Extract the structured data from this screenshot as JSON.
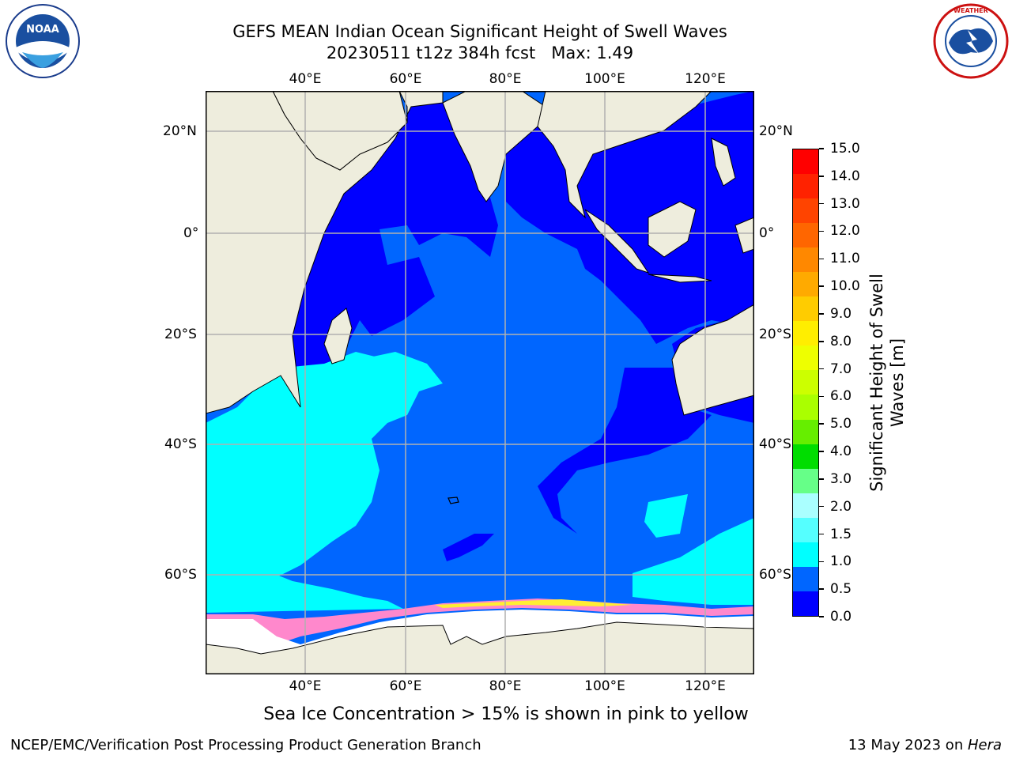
{
  "title_line1": "GEFS MEAN Indian Ocean Significant Height of Swell Waves",
  "title_line2": "20230511 t12z 384h fcst   Max: 1.49",
  "logos": {
    "noaa": {
      "text": "NOAA",
      "ring_text": "NATIONAL OCEANIC AND ATMOSPHERIC ADMINISTRATION · U.S. DEPARTMENT OF COMMERCE"
    },
    "nws": {
      "ring_text": "NATIONAL WEATHER SERVICE"
    }
  },
  "map": {
    "lon_range": [
      20,
      130
    ],
    "lat_range": [
      -73,
      27
    ],
    "lon_ticks": [
      "40°E",
      "60°E",
      "80°E",
      "100°E",
      "120°E"
    ],
    "lat_ticks": [
      "20°N",
      "0°",
      "20°S",
      "40°S",
      "60°S"
    ],
    "colors": {
      "land": "#eeeddd",
      "ocean_0_05": "#0000ff",
      "ocean_05_1": "#0066ff",
      "ocean_1_15": "#00ffff",
      "ice": "#ffffff",
      "grid": "#b0b0b0"
    }
  },
  "colorbar": {
    "label": "Significant Height of Swell Waves [m]",
    "ticks": [
      "15.0",
      "14.0",
      "13.0",
      "12.0",
      "11.0",
      "10.0",
      "9.0",
      "8.0",
      "7.0",
      "6.0",
      "5.0",
      "4.0",
      "3.0",
      "2.0",
      "1.5",
      "1.0",
      "0.5",
      "0.0"
    ],
    "colors": [
      "#ff0000",
      "#ff2200",
      "#ff4400",
      "#ff6600",
      "#ff8800",
      "#ffaa00",
      "#ffcc00",
      "#ffee00",
      "#eeff00",
      "#ccff00",
      "#aaff00",
      "#66ee00",
      "#00dd00",
      "#66ff88",
      "#aaffff",
      "#55ffff",
      "#00ffff",
      "#0066ff",
      "#0000ff"
    ]
  },
  "caption": "Sea Ice Concentration > 15% is shown in pink to yellow",
  "footer_left": "NCEP/EMC/Verification Post Processing Product Generation Branch",
  "footer_right_date": "13 May 2023 on ",
  "footer_right_host": "Hera"
}
